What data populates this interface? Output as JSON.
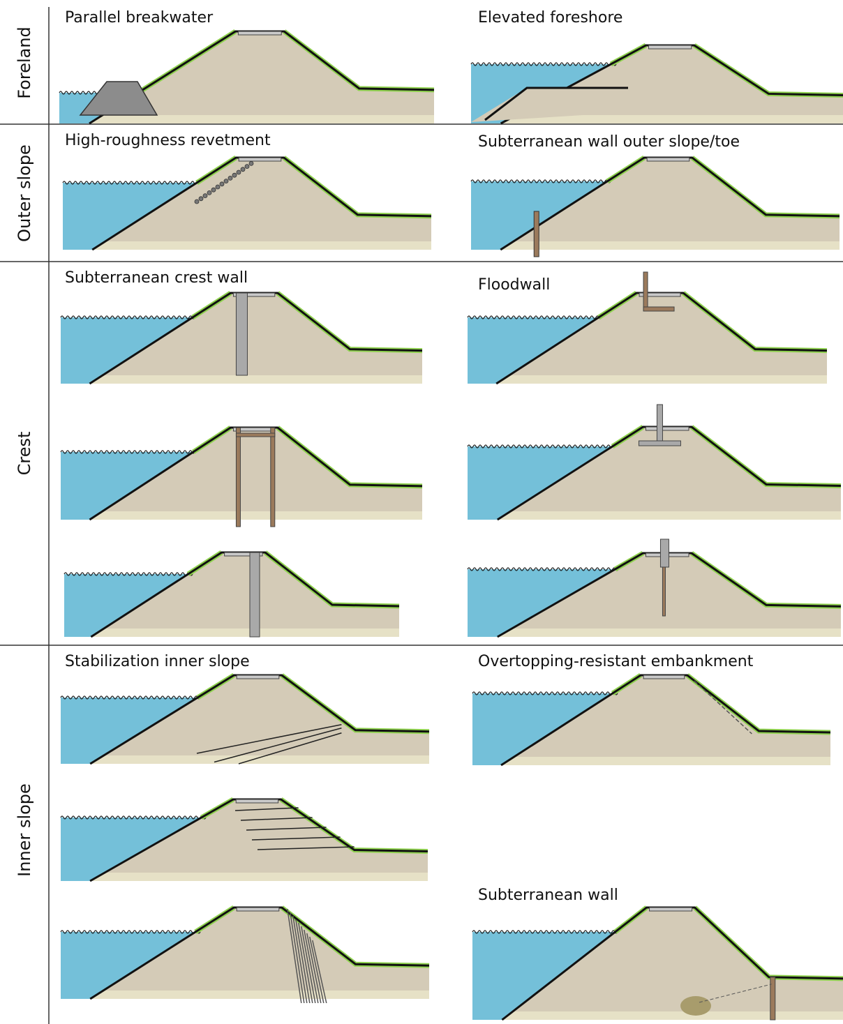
{
  "rows": [
    {
      "label": "Foreland",
      "panels": [
        "Parallel breakwater",
        "Elevated foreshore"
      ]
    },
    {
      "label": "Outer slope",
      "panels": [
        "High-roughness revetment",
        "Subterranean wall outer slope/toe"
      ]
    },
    {
      "label": "Crest",
      "panels": [
        "Subterranean crest wall",
        "Floodwall"
      ]
    },
    {
      "label": "Inner slope",
      "panels": [
        "Stabilization inner slope",
        "Overtopping-resistant embankment",
        "Subterranean wall"
      ]
    }
  ]
}
